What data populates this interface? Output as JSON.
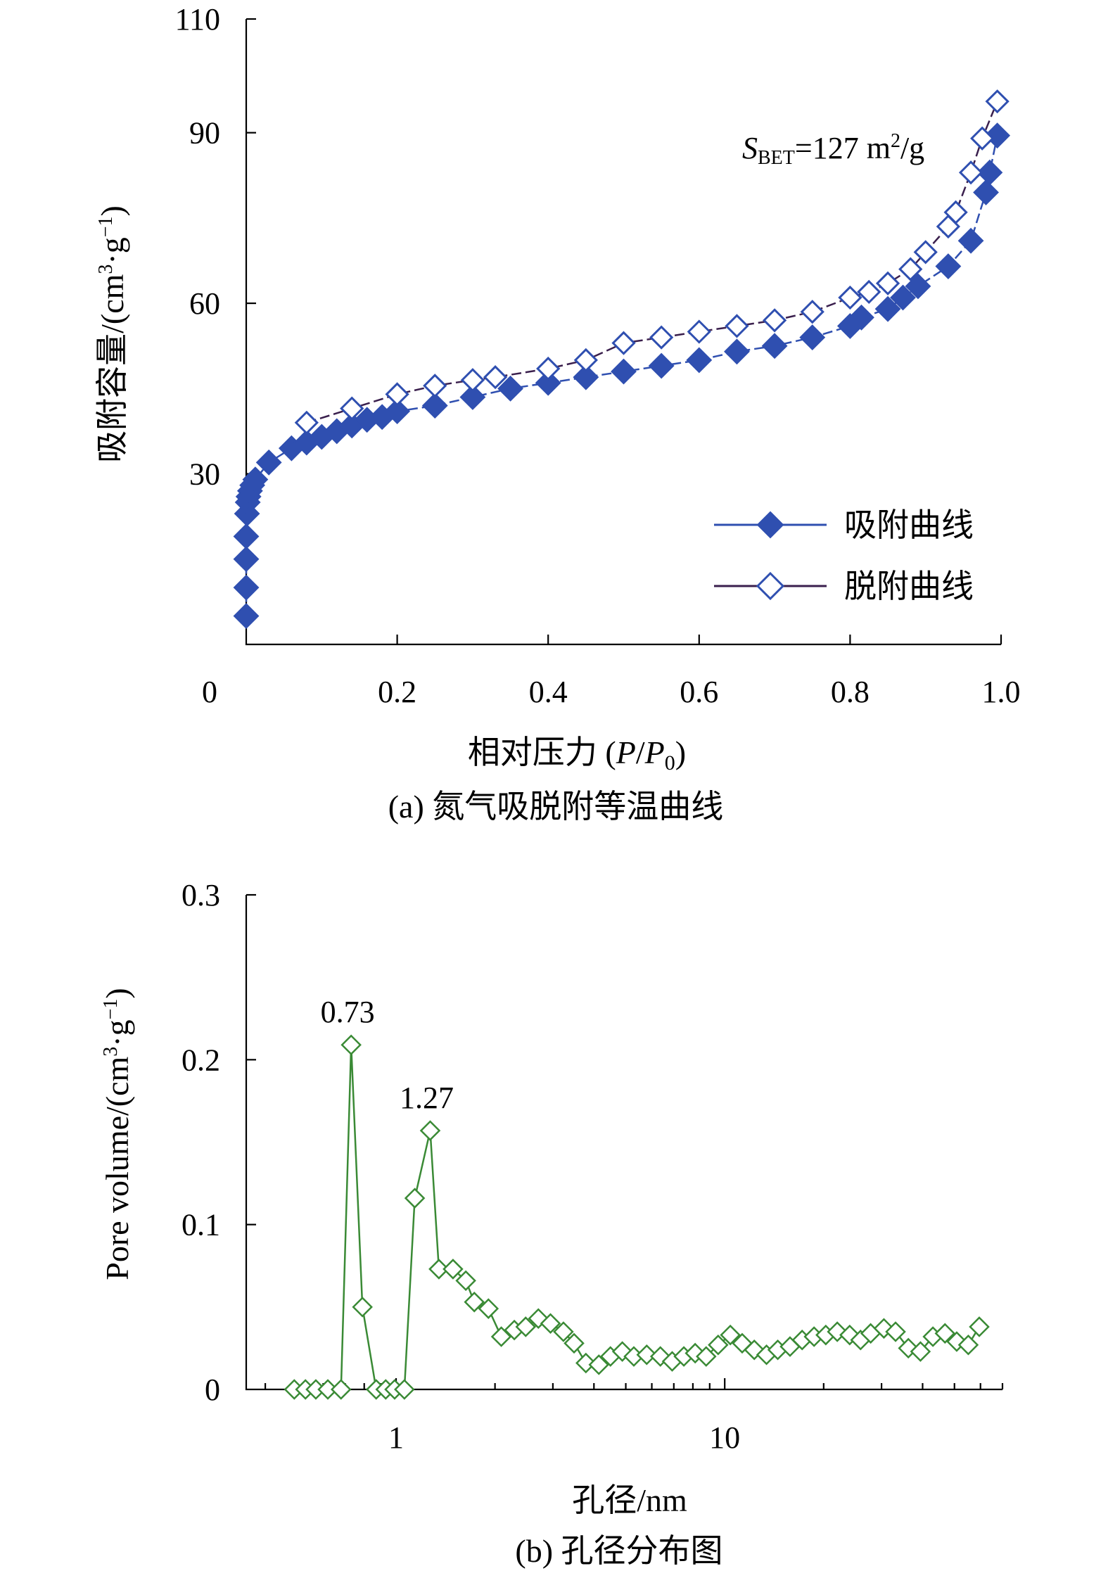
{
  "chart_data": [
    {
      "type": "line",
      "title": "(a) 氮气吸脱附等温曲线",
      "xlabel": "相对压力 (P/P0)",
      "xlabel_parts": [
        "相对压力 (",
        "P",
        "/",
        "P",
        "0",
        ")"
      ],
      "ylabel": "吸附容量/(cm3·g−1)",
      "ylabel_parts": [
        "吸附容量/(cm",
        "3",
        "·g",
        "−1",
        ")"
      ],
      "xlim": [
        0,
        1.0
      ],
      "ylim": [
        0,
        110
      ],
      "xticks": [
        0,
        0.2,
        0.4,
        0.6,
        0.8,
        1.0
      ],
      "xtick_labels": [
        "0",
        "0.2",
        "0.4",
        "0.6",
        "0.8",
        "1.0"
      ],
      "yticks": [
        30,
        60,
        90,
        110
      ],
      "ytick_labels": [
        "30",
        "60",
        "90",
        "110"
      ],
      "annotation": "SBET=127 m2/g",
      "annotation_parts": [
        "S",
        "BET",
        "=127 m",
        "2",
        "/g"
      ],
      "colors": {
        "adsorption": "#2f4fb0",
        "desorption_marker": "#2f4fb0",
        "desorption_line": "#3a1f4d"
      },
      "legend_position": "bottom-right",
      "series": [
        {
          "name": "吸附曲线",
          "marker": "filled-diamond",
          "x": [
            0.0,
            0.0,
            0.0,
            0.0,
            0.001,
            0.002,
            0.003,
            0.005,
            0.008,
            0.012,
            0.03,
            0.06,
            0.08,
            0.1,
            0.12,
            0.14,
            0.16,
            0.18,
            0.2,
            0.25,
            0.3,
            0.35,
            0.4,
            0.45,
            0.5,
            0.55,
            0.6,
            0.65,
            0.7,
            0.75,
            0.8,
            0.815,
            0.85,
            0.87,
            0.89,
            0.93,
            0.96,
            0.98,
            0.985,
            0.995
          ],
          "y": [
            5,
            10,
            15,
            19,
            23,
            25,
            26,
            27,
            28,
            29,
            32,
            34.5,
            35.5,
            36.5,
            37.5,
            38.5,
            39.5,
            40,
            41,
            42,
            43.5,
            45,
            46,
            47,
            48,
            49,
            50,
            51.5,
            52.5,
            54,
            56,
            57.5,
            59,
            61,
            63,
            66.5,
            71,
            79.5,
            83,
            89.5
          ]
        },
        {
          "name": "脱附曲线",
          "marker": "hollow-diamond",
          "x": [
            0.08,
            0.14,
            0.2,
            0.25,
            0.3,
            0.33,
            0.4,
            0.45,
            0.5,
            0.55,
            0.6,
            0.65,
            0.7,
            0.75,
            0.8,
            0.825,
            0.85,
            0.88,
            0.9,
            0.93,
            0.94,
            0.96,
            0.975,
            0.995
          ],
          "y": [
            39,
            41.5,
            44,
            45.5,
            46.5,
            47,
            48.5,
            50,
            53,
            54,
            55,
            56,
            57,
            58.5,
            61,
            62,
            63.5,
            66,
            69,
            73.5,
            76,
            83,
            89,
            95.5
          ]
        }
      ]
    },
    {
      "type": "line",
      "title": "(b) 孔径分布图",
      "xlabel": "孔径/nm",
      "ylabel": "Pore volume/(cm3·g−1)",
      "ylabel_parts": [
        "Pore volume/(cm",
        "3",
        "·g",
        "−1",
        ")"
      ],
      "xscale": "log",
      "xlim": [
        0.35,
        70
      ],
      "ylim": [
        0,
        0.3
      ],
      "xticks": [
        1,
        10
      ],
      "xtick_labels": [
        "1",
        "10"
      ],
      "yticks": [
        0,
        0.1,
        0.2,
        0.3
      ],
      "ytick_labels": [
        "0",
        "0.1",
        "0.2",
        "0.3"
      ],
      "colors": {
        "series": "#3a8a35"
      },
      "annotations": [
        {
          "text": "0.73",
          "x": 0.73,
          "y": 0.209
        },
        {
          "text": "1.27",
          "x": 1.27,
          "y": 0.157
        }
      ],
      "series": [
        {
          "name": "Pore volume",
          "marker": "hollow-diamond",
          "x": [
            0.49,
            0.53,
            0.57,
            0.62,
            0.68,
            0.73,
            0.79,
            0.87,
            0.93,
            0.99,
            1.06,
            1.14,
            1.27,
            1.35,
            1.49,
            1.63,
            1.73,
            1.91,
            2.09,
            2.29,
            2.48,
            2.71,
            2.95,
            3.23,
            3.48,
            3.78,
            4.14,
            4.49,
            4.88,
            5.29,
            5.79,
            6.37,
            6.92,
            7.51,
            8.13,
            8.78,
            9.55,
            10.4,
            11.3,
            12.3,
            13.4,
            14.5,
            15.8,
            17.2,
            18.7,
            20.3,
            22.0,
            24.0,
            25.9,
            27.8,
            30.5,
            33.1,
            36.2,
            39.4,
            43.0,
            46.8,
            50.8,
            55.1,
            59.5
          ],
          "y": [
            0.0,
            0.0,
            0.0,
            0.0,
            0.0,
            0.209,
            0.05,
            0.0,
            0.0,
            0.0,
            0.0,
            0.116,
            0.157,
            0.073,
            0.073,
            0.066,
            0.053,
            0.049,
            0.032,
            0.036,
            0.038,
            0.043,
            0.04,
            0.035,
            0.028,
            0.016,
            0.015,
            0.02,
            0.023,
            0.02,
            0.021,
            0.02,
            0.017,
            0.02,
            0.022,
            0.02,
            0.027,
            0.033,
            0.028,
            0.024,
            0.021,
            0.024,
            0.026,
            0.03,
            0.032,
            0.033,
            0.035,
            0.033,
            0.03,
            0.034,
            0.037,
            0.035,
            0.025,
            0.023,
            0.032,
            0.034,
            0.029,
            0.027,
            0.038
          ]
        }
      ]
    }
  ]
}
